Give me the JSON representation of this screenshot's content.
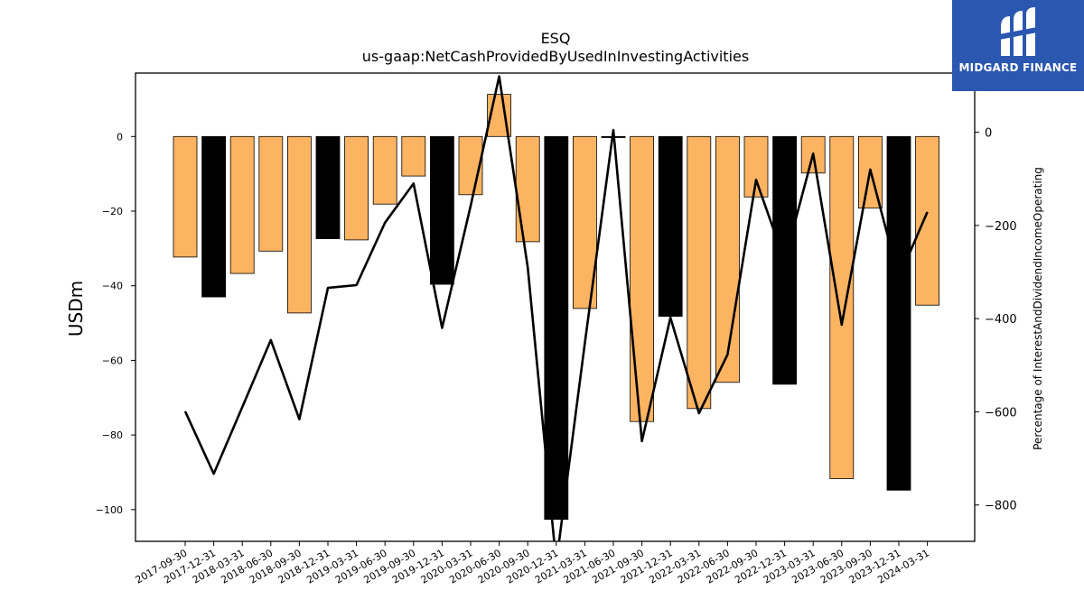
{
  "chart_data": {
    "type": "bar+line",
    "title": "ESQ",
    "subtitle": "us-gaap:NetCashProvidedByUsedInInvestingActivities",
    "ylabel_left": "USDm",
    "ylabel_right": "Percentage of InterestAndDividendIncomeOperating",
    "categories": [
      "2017-09-30",
      "2017-12-31",
      "2018-03-31",
      "2018-06-30",
      "2018-09-30",
      "2018-12-31",
      "2019-03-31",
      "2019-06-30",
      "2019-09-30",
      "2019-12-31",
      "2020-03-31",
      "2020-06-30",
      "2020-09-30",
      "2020-12-31",
      "2021-03-31",
      "2021-06-30",
      "2021-09-30",
      "2021-12-31",
      "2022-03-31",
      "2022-06-30",
      "2022-09-30",
      "2022-12-31",
      "2023-03-31",
      "2023-06-30",
      "2023-09-30",
      "2023-12-31",
      "2024-03-31"
    ],
    "bars": {
      "name": "NetCashProvidedByUsedInInvestingActivities",
      "values": [
        -32.3,
        -43.0,
        -36.7,
        -30.7,
        -47.3,
        -27.4,
        -27.7,
        -18.1,
        -10.6,
        -39.6,
        -15.6,
        11.3,
        -28.2,
        -102.6,
        -46.1,
        -0.3,
        -76.4,
        -48.2,
        -72.9,
        -65.9,
        -16.2,
        -66.4,
        -9.8,
        -91.7,
        -19.2,
        -94.8,
        -45.2
      ],
      "colors": [
        "#fdb462",
        "#000000",
        "#fdb462",
        "#fdb462",
        "#fdb462",
        "#000000",
        "#fdb462",
        "#fdb462",
        "#fdb462",
        "#000000",
        "#fdb462",
        "#fdb462",
        "#fdb462",
        "#000000",
        "#fdb462",
        "#000000",
        "#fdb462",
        "#000000",
        "#fdb462",
        "#fdb462",
        "#fdb462",
        "#000000",
        "#fdb462",
        "#fdb462",
        "#fdb462",
        "#000000",
        "#fdb462"
      ]
    },
    "line": {
      "name": "Percentage of InterestAndDividendIncomeOperating",
      "values": [
        -599,
        -733,
        -590,
        -446,
        -616,
        -334,
        -328,
        -194,
        -110,
        -420,
        -158,
        120,
        -290,
        -925,
        -453,
        5,
        -663,
        -398,
        -603,
        -477,
        -102,
        -276,
        -46,
        -413,
        -80,
        -313,
        -171
      ]
    },
    "ylim_left": [
      -108.5,
      17.0
    ],
    "ylim_right": [
      -878,
      127
    ],
    "yticks_left": [
      "0",
      "−20",
      "−40",
      "−60",
      "−80",
      "−100"
    ],
    "yticks_right": [
      "0",
      "−200",
      "−400",
      "−600",
      "−800"
    ],
    "grid": false,
    "bar_color_primary": "#fdb462",
    "bar_color_alt": "#000000",
    "line_color": "#000000"
  },
  "logo": {
    "text": "MIDGARD FINANCE",
    "background": "#2a57b0"
  }
}
